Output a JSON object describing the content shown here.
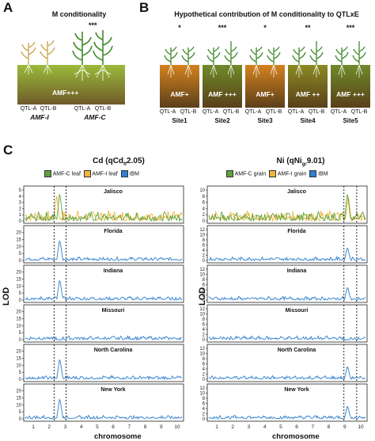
{
  "panel_a": {
    "letter": "A",
    "title": "M conditionality",
    "stars": [
      "***"
    ],
    "soil_label": "AMF+++",
    "qtl_labels": [
      "QTL-A",
      "QTL-B",
      "QTL-A",
      "QTL-B"
    ],
    "group_labels": [
      "AMF-I",
      "AMF-C"
    ]
  },
  "panel_b": {
    "letter": "B",
    "title": "Hypothetical contribution of M conditionality to QTLxE",
    "sites": [
      {
        "name": "Site1",
        "soil": "AMF+",
        "stars": "*",
        "color": "#d4821e"
      },
      {
        "name": "Site2",
        "soil": "AMF +++",
        "stars": "***",
        "color": "#6f8a2a"
      },
      {
        "name": "Site3",
        "soil": "AMF+",
        "stars": "*",
        "color": "#d4821e"
      },
      {
        "name": "Site4",
        "soil": "AMF ++",
        "stars": "**",
        "color": "#8a8a22"
      },
      {
        "name": "Site5",
        "soil": "AMF +++",
        "stars": "***",
        "color": "#6f8a2a"
      }
    ],
    "qtl_a": "QTL-A",
    "qtl_b": "QTL-B"
  },
  "panel_c": {
    "letter": "C",
    "ylabel": "LOD",
    "xlabel": "chromosome",
    "chromosome_ticks": [
      "1",
      "2",
      "3",
      "4",
      "5",
      "6",
      "7",
      "8",
      "9",
      "10"
    ],
    "left": {
      "title_main": "Cd (qCd",
      "title_sub": "ff",
      "title_end": "2.05)",
      "legend": [
        "AMF-C leaf",
        "AMF-I leaf",
        "IBM"
      ],
      "legend_colors": [
        "#5ba33a",
        "#f3b43a",
        "#2f7fd0"
      ],
      "sites": [
        {
          "name": "Jalisco",
          "yticks": [
            "0",
            "1",
            "2",
            "3",
            "4",
            "5"
          ],
          "ymax": 5
        },
        {
          "name": "Florida",
          "yticks": [
            "0",
            "5",
            "10",
            "15",
            "20"
          ],
          "ymax": 22
        },
        {
          "name": "Indiana",
          "yticks": [
            "0",
            "5",
            "10",
            "15",
            "20"
          ],
          "ymax": 22
        },
        {
          "name": "Missouri",
          "yticks": [
            "0",
            "5",
            "10",
            "15",
            "20"
          ],
          "ymax": 22
        },
        {
          "name": "North Carolina",
          "yticks": [
            "0",
            "5",
            "10",
            "15",
            "20"
          ],
          "ymax": 22
        },
        {
          "name": "New York",
          "yticks": [
            "0",
            "5",
            "10",
            "15",
            "20"
          ],
          "ymax": 22
        }
      ]
    },
    "right": {
      "title_main": "Ni (qNi",
      "title_sub": "gr",
      "title_end": "9.01)",
      "legend": [
        "AMF-C grain",
        "AMF-I grain",
        "IBM"
      ],
      "legend_colors": [
        "#5ba33a",
        "#f3b43a",
        "#2f7fd0"
      ],
      "sites": [
        {
          "name": "Jalisco",
          "yticks": [
            "0",
            "2",
            "4",
            "6",
            "8",
            "10"
          ],
          "ymax": 10
        },
        {
          "name": "Florida",
          "yticks": [
            "0",
            "2",
            "4",
            "6",
            "8",
            "10",
            "12"
          ],
          "ymax": 12
        },
        {
          "name": "Indiana",
          "yticks": [
            "0",
            "2",
            "4",
            "6",
            "8",
            "10",
            "12"
          ],
          "ymax": 12
        },
        {
          "name": "Missouri",
          "yticks": [
            "0",
            "2",
            "4",
            "6",
            "8",
            "10",
            "12"
          ],
          "ymax": 12
        },
        {
          "name": "North Carolina",
          "yticks": [
            "0",
            "2",
            "4",
            "6",
            "8",
            "10",
            "12"
          ],
          "ymax": 12
        },
        {
          "name": "New York",
          "yticks": [
            "0",
            "2",
            "4",
            "6",
            "8",
            "10",
            "12"
          ],
          "ymax": 12
        }
      ]
    }
  },
  "colors": {
    "amf_c": "#5ba33a",
    "amf_i": "#f3b43a",
    "ibm": "#2f7fd0",
    "soil_green": "#6f8a2a",
    "soil_orange": "#d4821e"
  }
}
